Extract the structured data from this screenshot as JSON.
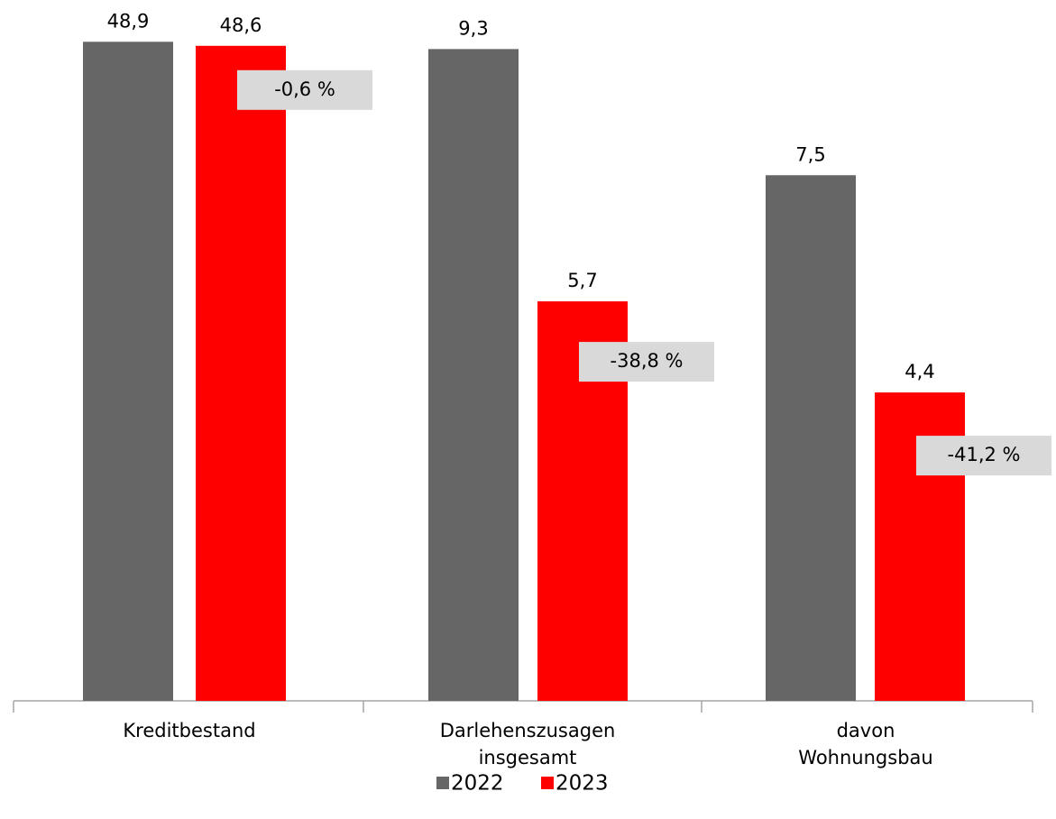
{
  "chart_data": [
    {
      "type": "bar",
      "categories": [
        "Kreditbestand"
      ],
      "ylim": [
        0,
        52
      ],
      "annotation": "-0,6 %",
      "series": [
        {
          "name": "2022",
          "color": "#666666",
          "values": [
            48.9
          ],
          "value_labels": [
            "48,9"
          ]
        },
        {
          "name": "2023",
          "color": "#ff0000",
          "values": [
            48.6
          ],
          "value_labels": [
            "48,6"
          ]
        }
      ]
    },
    {
      "type": "bar",
      "categories": [
        "Darlehenszusagen\ninsgesamt"
      ],
      "ylim": [
        0,
        10
      ],
      "annotation": "-38,8 %",
      "series": [
        {
          "name": "2022",
          "color": "#666666",
          "values": [
            9.3
          ],
          "value_labels": [
            "9,3"
          ]
        },
        {
          "name": "2023",
          "color": "#ff0000",
          "values": [
            5.7
          ],
          "value_labels": [
            "5,7"
          ]
        }
      ]
    },
    {
      "type": "bar",
      "categories": [
        "davon\nWohnungsbau"
      ],
      "ylim": [
        0,
        10
      ],
      "annotation": "-41,2 %",
      "series": [
        {
          "name": "2022",
          "color": "#666666",
          "values": [
            7.5
          ],
          "value_labels": [
            "7,5"
          ]
        },
        {
          "name": "2023",
          "color": "#ff0000",
          "values": [
            4.4
          ],
          "value_labels": [
            "4,4"
          ]
        }
      ]
    }
  ]
}
